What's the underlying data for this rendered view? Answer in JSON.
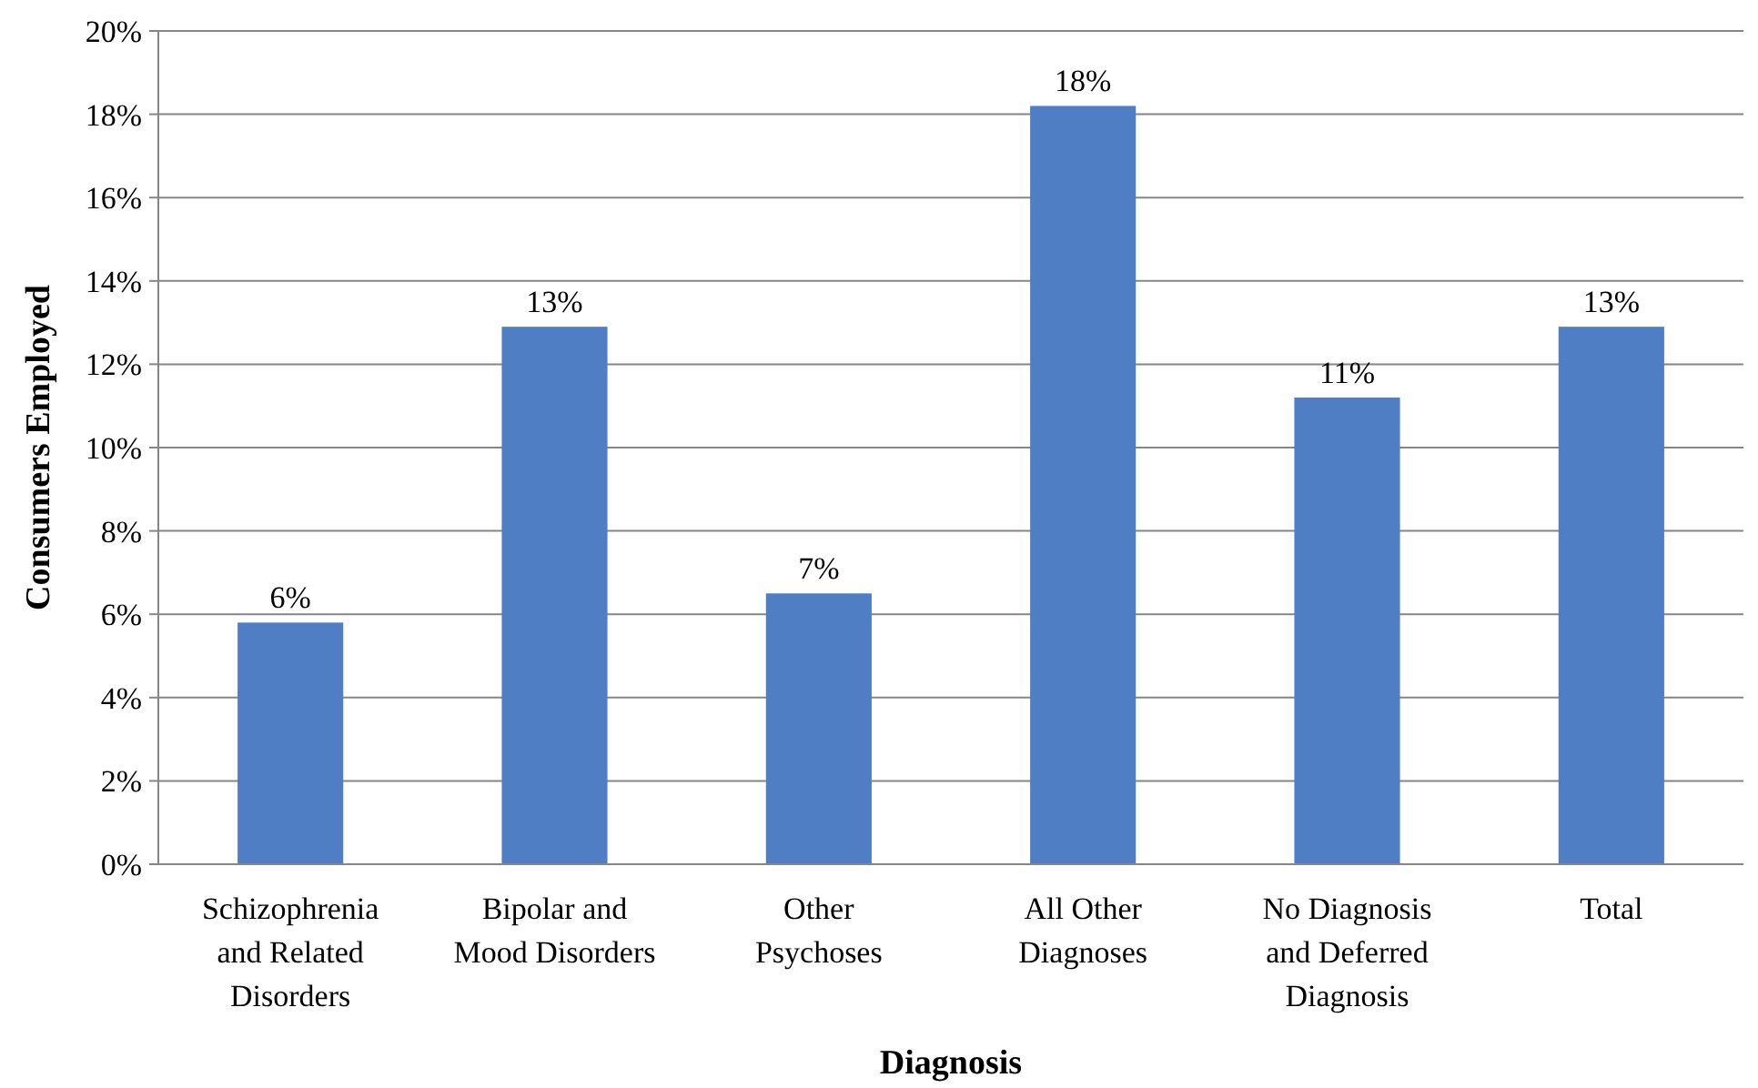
{
  "chart_data": {
    "type": "bar",
    "xlabel": "Diagnosis",
    "ylabel": "Consumers Employed",
    "categories": [
      "Schizophrenia and Related Disorders",
      "Bipolar and Mood Disorders",
      "Other Psychoses",
      "All Other Diagnoses",
      "No Diagnosis and Deferred Diagnosis",
      "Total"
    ],
    "values": [
      5.8,
      12.9,
      6.5,
      18.2,
      11.2,
      12.9
    ],
    "value_labels": [
      "6%",
      "13%",
      "7%",
      "18%",
      "11%",
      "13%"
    ],
    "color": "#4f7ec4",
    "ylim": [
      0,
      20
    ],
    "yticks": [
      {
        "value": 0,
        "label": "0%"
      },
      {
        "value": 2,
        "label": "2%"
      },
      {
        "value": 4,
        "label": "4%"
      },
      {
        "value": 6,
        "label": "6%"
      },
      {
        "value": 8,
        "label": "8%"
      },
      {
        "value": 10,
        "label": "10%"
      },
      {
        "value": 12,
        "label": "12%"
      },
      {
        "value": 14,
        "label": "14%"
      },
      {
        "value": 16,
        "label": "16%"
      },
      {
        "value": 18,
        "label": "18%"
      },
      {
        "value": 20,
        "label": "20%"
      }
    ],
    "grid": "y"
  }
}
